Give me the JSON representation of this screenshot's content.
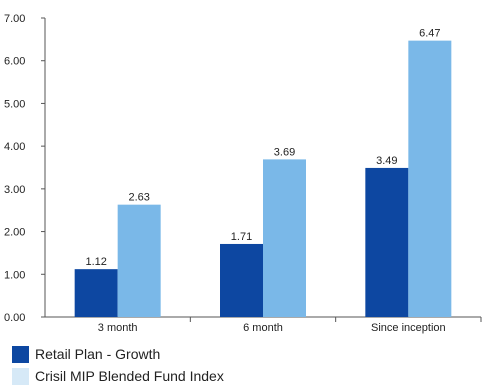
{
  "chart_data": {
    "type": "bar",
    "categories": [
      "3 month",
      "6 month",
      "Since inception"
    ],
    "series": [
      {
        "name": "Retail Plan - Growth",
        "values": [
          1.12,
          1.71,
          3.49
        ],
        "color": "#0d47a1"
      },
      {
        "name": "Crisil MIP Blended Fund Index",
        "values": [
          2.63,
          3.69,
          6.47
        ],
        "color": "#7ab8e8"
      }
    ],
    "ylim": [
      0,
      7
    ],
    "yticks": [
      "0.00",
      "1.00",
      "2.00",
      "3.00",
      "4.00",
      "5.00",
      "6.00",
      "7.00"
    ],
    "data_labels": [
      [
        "1.12",
        "1.71",
        "3.49"
      ],
      [
        "2.63",
        "3.69",
        "6.47"
      ]
    ],
    "grid": false,
    "legend_position": "bottom-left",
    "legend_swatch_colors": [
      "#0d47a1",
      "#d6e9f7"
    ]
  }
}
